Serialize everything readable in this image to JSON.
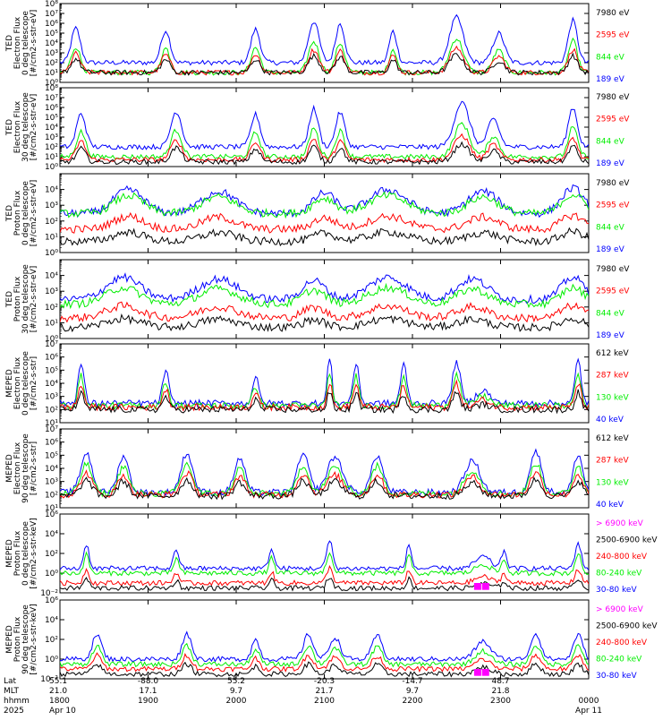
{
  "colors": {
    "black": "#000000",
    "red": "#ff0000",
    "green": "#00ee00",
    "blue": "#0000ff",
    "magenta": "#ff00ff",
    "background": "#ffffff"
  },
  "x_axis": {
    "rows": [
      {
        "label": "Lat",
        "values": [
          "55.1",
          "-88.0",
          "55.2",
          "-20.3",
          "-14.7",
          "48.7",
          ""
        ]
      },
      {
        "label": "MLT",
        "values": [
          "21.0",
          "17.1",
          "9.7",
          "21.7",
          "9.7",
          "21.8",
          ""
        ]
      },
      {
        "label": "hhmm",
        "values": [
          "1800",
          "1900",
          "2000",
          "2100",
          "2200",
          "2300",
          "0000"
        ]
      },
      {
        "label": "2025",
        "values": [
          "Apr 10",
          "",
          "",
          "",
          "",
          "",
          "Apr 11"
        ]
      }
    ]
  },
  "chart_data": [
    {
      "type": "line",
      "ylabel": [
        "TED",
        "Electron Flux",
        "0 deg telescope",
        "[#/cm2-s-str-eV]"
      ],
      "yscale": "log",
      "ylim": [
        1,
        100000000
      ],
      "yticks": [
        1,
        10,
        100,
        1000,
        10000,
        100000,
        1000000,
        10000000,
        100000000
      ],
      "ytick_labels": [
        "10⁰",
        "10¹",
        "10²",
        "10³",
        "10⁴",
        "10⁵",
        "10⁶",
        "10⁷",
        "10⁸"
      ],
      "legend": [
        {
          "name": "7980 eV",
          "color": "black"
        },
        {
          "name": "2595 eV",
          "color": "red"
        },
        {
          "name": "844 eV",
          "color": "green"
        },
        {
          "name": "189 eV",
          "color": "blue"
        }
      ],
      "baselines": {
        "blue": 100,
        "green": 10,
        "red": 10,
        "black": 10
      },
      "events": [
        {
          "t": 0.03,
          "amp": 3.5,
          "w": 0.012
        },
        {
          "t": 0.2,
          "amp": 3.3,
          "w": 0.012
        },
        {
          "t": 0.37,
          "amp": 3.4,
          "w": 0.012
        },
        {
          "t": 0.48,
          "amp": 4.2,
          "w": 0.014
        },
        {
          "t": 0.53,
          "amp": 4.0,
          "w": 0.012
        },
        {
          "t": 0.63,
          "amp": 3.2,
          "w": 0.01
        },
        {
          "t": 0.75,
          "amp": 4.6,
          "w": 0.018
        },
        {
          "t": 0.83,
          "amp": 3.0,
          "w": 0.015
        },
        {
          "t": 0.97,
          "amp": 4.3,
          "w": 0.012
        }
      ]
    },
    {
      "type": "line",
      "ylabel": [
        "TED",
        "Electron Flux",
        "30 deg telescope",
        "[#/cm2-s-str-eV]"
      ],
      "yscale": "log",
      "ylim": [
        1,
        100000000
      ],
      "yticks": [
        1,
        10,
        100,
        1000,
        10000,
        100000,
        1000000,
        10000000,
        100000000
      ],
      "ytick_labels": [
        "10⁰",
        "10¹",
        "10²",
        "10³",
        "10⁴",
        "10⁵",
        "10⁶",
        "10⁷",
        "10⁸"
      ],
      "legend": [
        {
          "name": "7980 eV",
          "color": "black"
        },
        {
          "name": "2595 eV",
          "color": "red"
        },
        {
          "name": "844 eV",
          "color": "green"
        },
        {
          "name": "189 eV",
          "color": "blue"
        }
      ],
      "baselines": {
        "blue": 100,
        "green": 10,
        "red": 5,
        "black": 3
      },
      "events": [
        {
          "t": 0.04,
          "amp": 3.4,
          "w": 0.012
        },
        {
          "t": 0.22,
          "amp": 3.6,
          "w": 0.014
        },
        {
          "t": 0.37,
          "amp": 3.3,
          "w": 0.012
        },
        {
          "t": 0.48,
          "amp": 3.9,
          "w": 0.012
        },
        {
          "t": 0.53,
          "amp": 3.5,
          "w": 0.012
        },
        {
          "t": 0.76,
          "amp": 4.5,
          "w": 0.02
        },
        {
          "t": 0.82,
          "amp": 2.8,
          "w": 0.015
        },
        {
          "t": 0.97,
          "amp": 4.0,
          "w": 0.012
        }
      ]
    },
    {
      "type": "line",
      "ylabel": [
        "TED",
        "Proton Flux",
        "0 deg telescope",
        "[#/cm2-s-str-eV]"
      ],
      "yscale": "log",
      "ylim": [
        1,
        100000
      ],
      "yticks": [
        1,
        10,
        100,
        1000,
        10000,
        100000
      ],
      "ytick_labels": [
        "10⁰",
        "10¹",
        "10²",
        "10³",
        "10⁴",
        ""
      ],
      "legend": [
        {
          "name": "7980 eV",
          "color": "black"
        },
        {
          "name": "2595 eV",
          "color": "red"
        },
        {
          "name": "844 eV",
          "color": "green"
        },
        {
          "name": "189 eV",
          "color": "blue"
        }
      ],
      "baselines": {
        "blue": 300,
        "green": 300,
        "red": 30,
        "black": 5
      },
      "events": [
        {
          "t": 0.13,
          "amp": 1.5,
          "w": 0.04
        },
        {
          "t": 0.3,
          "amp": 1.4,
          "w": 0.045
        },
        {
          "t": 0.5,
          "amp": 1.3,
          "w": 0.03
        },
        {
          "t": 0.62,
          "amp": 1.5,
          "w": 0.05
        },
        {
          "t": 0.8,
          "amp": 1.4,
          "w": 0.04
        },
        {
          "t": 0.97,
          "amp": 1.6,
          "w": 0.03
        }
      ]
    },
    {
      "type": "line",
      "ylabel": [
        "TED",
        "Proton Flux",
        "30 deg telescope",
        "[#/cm2-s-str-eV]"
      ],
      "yscale": "log",
      "ylim": [
        1,
        100000
      ],
      "yticks": [
        1,
        10,
        100,
        1000,
        10000,
        100000
      ],
      "ytick_labels": [
        "10⁰",
        "10¹",
        "10²",
        "10³",
        "10⁴",
        ""
      ],
      "legend": [
        {
          "name": "7980 eV",
          "color": "black"
        },
        {
          "name": "2595 eV",
          "color": "red"
        },
        {
          "name": "844 eV",
          "color": "green"
        },
        {
          "name": "189 eV",
          "color": "blue"
        }
      ],
      "baselines": {
        "blue": 300,
        "green": 150,
        "red": 20,
        "black": 5
      },
      "events": [
        {
          "t": 0.12,
          "amp": 1.4,
          "w": 0.045
        },
        {
          "t": 0.3,
          "amp": 1.3,
          "w": 0.05
        },
        {
          "t": 0.48,
          "amp": 1.2,
          "w": 0.03
        },
        {
          "t": 0.62,
          "amp": 1.4,
          "w": 0.05
        },
        {
          "t": 0.78,
          "amp": 1.3,
          "w": 0.04
        },
        {
          "t": 0.97,
          "amp": 1.4,
          "w": 0.03
        }
      ]
    },
    {
      "type": "line",
      "ylabel": [
        "MEPED",
        "Electron Flux",
        "0 deg telescope",
        "[#/cm2-s-str]"
      ],
      "yscale": "log",
      "ylim": [
        10,
        10000000
      ],
      "yticks": [
        10,
        100,
        1000,
        10000,
        100000,
        1000000,
        10000000
      ],
      "ytick_labels": [
        "10¹",
        "10²",
        "10³",
        "10⁴",
        "10⁵",
        "10⁶",
        "10⁷"
      ],
      "legend": [
        {
          "name": "612 keV",
          "color": "black"
        },
        {
          "name": "287 keV",
          "color": "red"
        },
        {
          "name": "130 keV",
          "color": "green"
        },
        {
          "name": "40 keV",
          "color": "blue"
        }
      ],
      "baselines": {
        "blue": 300,
        "green": 200,
        "red": 150,
        "black": 100
      },
      "events": [
        {
          "t": 0.04,
          "amp": 3.0,
          "w": 0.008
        },
        {
          "t": 0.2,
          "amp": 2.5,
          "w": 0.008
        },
        {
          "t": 0.37,
          "amp": 2.0,
          "w": 0.008
        },
        {
          "t": 0.51,
          "amp": 3.5,
          "w": 0.006
        },
        {
          "t": 0.56,
          "amp": 3.0,
          "w": 0.008
        },
        {
          "t": 0.65,
          "amp": 3.0,
          "w": 0.008
        },
        {
          "t": 0.75,
          "amp": 3.2,
          "w": 0.01
        },
        {
          "t": 0.8,
          "amp": 1.0,
          "w": 0.018
        },
        {
          "t": 0.98,
          "amp": 3.3,
          "w": 0.008
        }
      ]
    },
    {
      "type": "line",
      "ylabel": [
        "MEPED",
        "Electron Flux",
        "90 deg telescope",
        "[#/cm2-s-str]"
      ],
      "yscale": "log",
      "ylim": [
        10,
        10000000
      ],
      "yticks": [
        10,
        100,
        1000,
        10000,
        100000,
        1000000,
        10000000
      ],
      "ytick_labels": [
        "10¹",
        "10²",
        "10³",
        "10⁴",
        "10⁵",
        "10⁶",
        "10⁷"
      ],
      "legend": [
        {
          "name": "612 keV",
          "color": "black"
        },
        {
          "name": "287 keV",
          "color": "red"
        },
        {
          "name": "130 keV",
          "color": "green"
        },
        {
          "name": "40 keV",
          "color": "blue"
        }
      ],
      "baselines": {
        "blue": 150,
        "green": 120,
        "red": 100,
        "black": 80
      },
      "events": [
        {
          "t": 0.05,
          "amp": 3.0,
          "w": 0.015
        },
        {
          "t": 0.12,
          "amp": 2.8,
          "w": 0.014
        },
        {
          "t": 0.24,
          "amp": 3.0,
          "w": 0.015
        },
        {
          "t": 0.34,
          "amp": 2.6,
          "w": 0.014
        },
        {
          "t": 0.46,
          "amp": 2.9,
          "w": 0.015
        },
        {
          "t": 0.52,
          "amp": 2.7,
          "w": 0.02
        },
        {
          "t": 0.6,
          "amp": 2.8,
          "w": 0.015
        },
        {
          "t": 0.78,
          "amp": 2.4,
          "w": 0.02
        },
        {
          "t": 0.9,
          "amp": 3.1,
          "w": 0.015
        },
        {
          "t": 0.98,
          "amp": 2.9,
          "w": 0.012
        }
      ]
    },
    {
      "type": "line",
      "ylabel": [
        "MEPED",
        "Proton Flux",
        "0 deg telescope",
        "[#/cm2-s-str-keV]"
      ],
      "yscale": "log",
      "ylim": [
        0.01,
        1000000
      ],
      "yticks": [
        0.01,
        1,
        100,
        10000,
        1000000
      ],
      "ytick_labels": [
        "10⁻²",
        "10⁰",
        "10²",
        "10⁴",
        "10⁶"
      ],
      "legend": [
        {
          "name": "> 6900 keV",
          "color": "magenta"
        },
        {
          "name": "2500-6900 keV",
          "color": "black"
        },
        {
          "name": "240-800 keV",
          "color": "red"
        },
        {
          "name": "80-240 keV",
          "color": "green"
        },
        {
          "name": "30-80 keV",
          "color": "blue"
        }
      ],
      "baselines": {
        "blue": 3,
        "green": 1,
        "red": 0.1,
        "black": 0.03
      },
      "events": [
        {
          "t": 0.05,
          "amp": 2.5,
          "w": 0.007
        },
        {
          "t": 0.22,
          "amp": 2.0,
          "w": 0.007
        },
        {
          "t": 0.4,
          "amp": 2.0,
          "w": 0.007
        },
        {
          "t": 0.51,
          "amp": 2.8,
          "w": 0.008
        },
        {
          "t": 0.66,
          "amp": 2.3,
          "w": 0.007
        },
        {
          "t": 0.8,
          "amp": 1.2,
          "w": 0.02
        },
        {
          "t": 0.84,
          "amp": 1.8,
          "w": 0.007
        },
        {
          "t": 0.98,
          "amp": 2.6,
          "w": 0.008
        }
      ]
    },
    {
      "type": "line",
      "ylabel": [
        "MEPED",
        "Proton Flux",
        "90 deg telescope",
        "[#/cm2-s-str-keV]"
      ],
      "yscale": "log",
      "ylim": [
        0.01,
        1000000
      ],
      "yticks": [
        0.01,
        1,
        100,
        10000,
        1000000
      ],
      "ytick_labels": [
        "10⁻²",
        "10⁰",
        "10²",
        "10⁴",
        "10⁶"
      ],
      "legend": [
        {
          "name": "> 6900 keV",
          "color": "magenta"
        },
        {
          "name": "2500-6900 keV",
          "color": "black"
        },
        {
          "name": "240-800 keV",
          "color": "red"
        },
        {
          "name": "80-240 keV",
          "color": "green"
        },
        {
          "name": "30-80 keV",
          "color": "blue"
        }
      ],
      "baselines": {
        "blue": 1,
        "green": 0.3,
        "red": 0.1,
        "black": 0.03
      },
      "events": [
        {
          "t": 0.07,
          "amp": 2.5,
          "w": 0.012
        },
        {
          "t": 0.24,
          "amp": 2.6,
          "w": 0.012
        },
        {
          "t": 0.37,
          "amp": 2.0,
          "w": 0.01
        },
        {
          "t": 0.47,
          "amp": 2.5,
          "w": 0.013
        },
        {
          "t": 0.52,
          "amp": 2.2,
          "w": 0.014
        },
        {
          "t": 0.6,
          "amp": 2.4,
          "w": 0.013
        },
        {
          "t": 0.8,
          "amp": 1.8,
          "w": 0.02
        },
        {
          "t": 0.9,
          "amp": 2.6,
          "w": 0.013
        },
        {
          "t": 0.98,
          "amp": 2.5,
          "w": 0.012
        }
      ]
    }
  ]
}
